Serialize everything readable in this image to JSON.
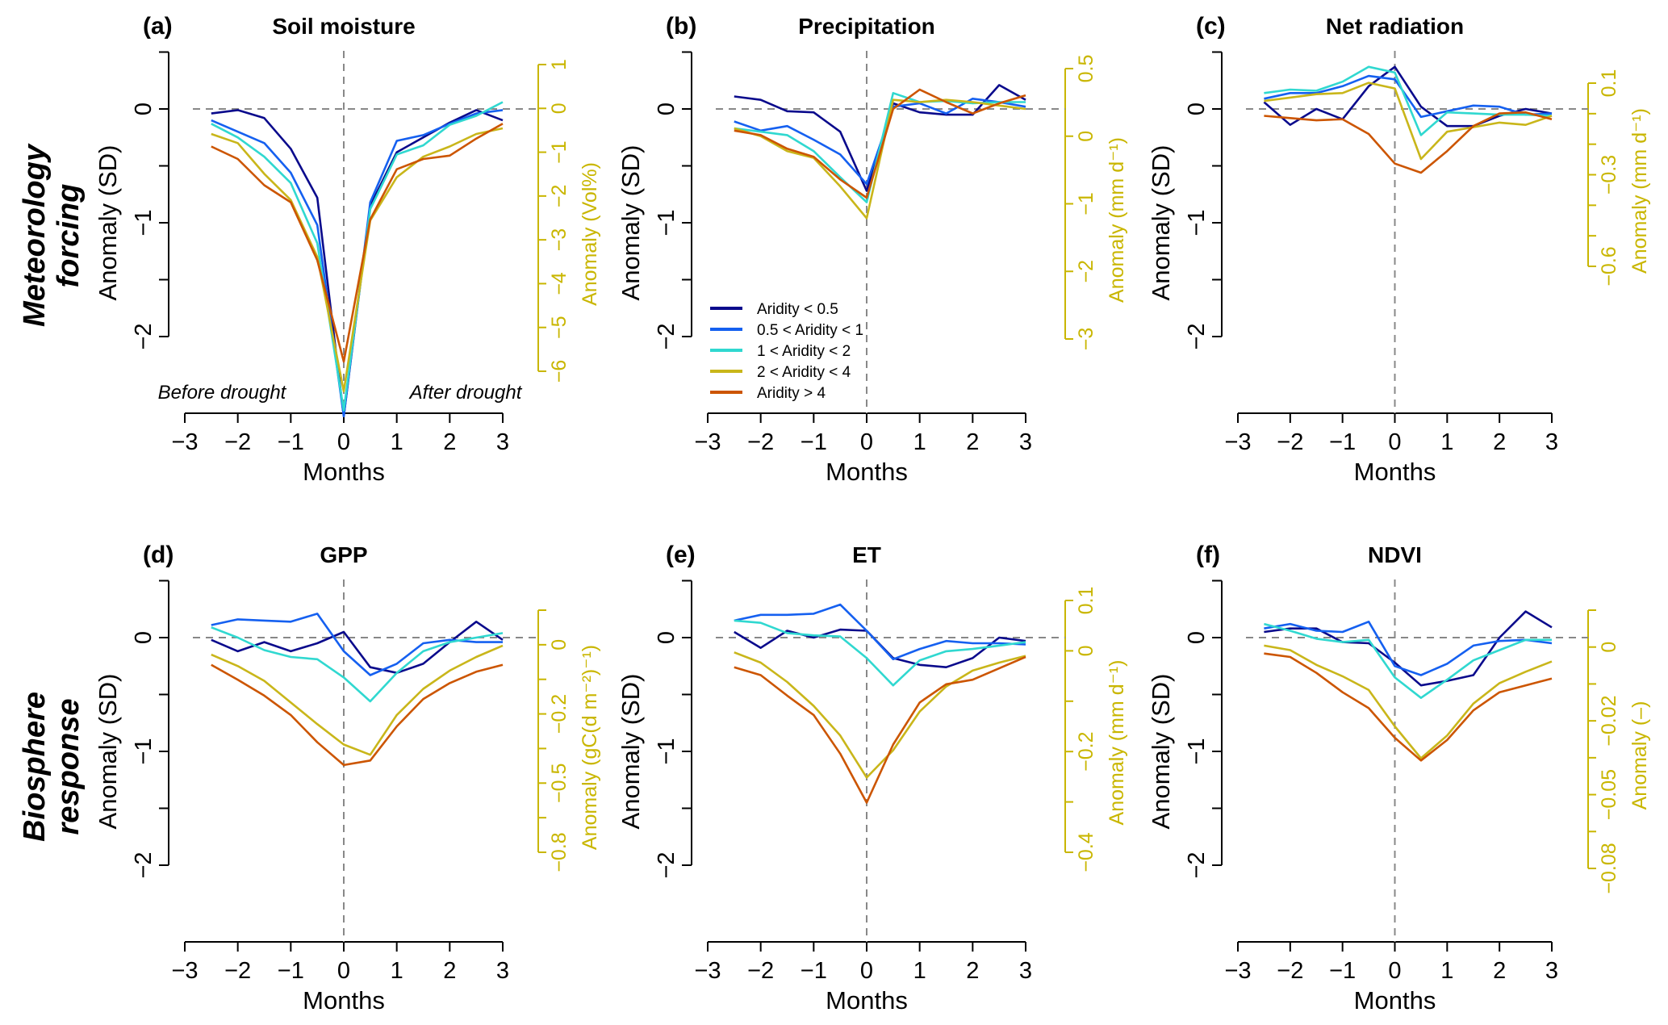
{
  "chart_data": {
    "type": "line",
    "x": [
      -2.5,
      -2,
      -1.5,
      -1,
      -0.5,
      0,
      0.5,
      1,
      1.5,
      2,
      2.5,
      3
    ],
    "xlabel": "Months",
    "xticks": [
      -3,
      -2,
      -1,
      0,
      1,
      2,
      3
    ],
    "xlim": [
      -3,
      3
    ],
    "ylabel": "Anomaly (SD)",
    "yticks": [
      0,
      -1,
      -2
    ],
    "ylim": [
      -2.7,
      0.5
    ],
    "reference_lines": {
      "horizontal": 0,
      "vertical": 0,
      "style": "dashed"
    },
    "series_names": [
      "Aridity < 0.5",
      "0.5 < Aridity < 1",
      "1 < Aridity < 2",
      "2 < Aridity < 4",
      "Aridity > 4"
    ],
    "series_colors": [
      "#0a0a8c",
      "#1560f0",
      "#30d8d0",
      "#c9b61a",
      "#cc5500"
    ],
    "legend_location": "panel (b), bottom-left",
    "row_labels": [
      {
        "line1": "Meteorology",
        "line2": "forcing"
      },
      {
        "line1": "Biosphere",
        "line2": "response"
      }
    ],
    "panels": [
      {
        "label": "(a)",
        "title": "Soil moisture",
        "right_axis": {
          "label": "Anomaly (Vol%)",
          "ticks": [
            "1",
            "0",
            "−1",
            "−2",
            "−3",
            "−4",
            "−5",
            "−6"
          ],
          "range": [
            1,
            -6
          ]
        },
        "annotations": [
          "Before  drought",
          "After  drought"
        ],
        "series": [
          {
            "name": "Aridity < 0.5",
            "values": [
              -0.04,
              -0.01,
              -0.08,
              -0.35,
              -0.78,
              -2.72,
              -0.85,
              -0.38,
              -0.25,
              -0.12,
              -0.01,
              -0.1
            ]
          },
          {
            "name": "0.5 < Aridity < 1",
            "values": [
              -0.1,
              -0.2,
              -0.3,
              -0.56,
              -1.02,
              -2.72,
              -0.82,
              -0.28,
              -0.23,
              -0.13,
              -0.04,
              -0.01
            ]
          },
          {
            "name": "1 < Aridity < 2",
            "values": [
              -0.13,
              -0.25,
              -0.42,
              -0.65,
              -1.18,
              -2.65,
              -0.88,
              -0.4,
              -0.32,
              -0.14,
              -0.06,
              0.06
            ]
          },
          {
            "name": "2 < Aridity < 4",
            "values": [
              -0.22,
              -0.3,
              -0.57,
              -0.8,
              -1.3,
              -2.48,
              -0.98,
              -0.6,
              -0.42,
              -0.33,
              -0.22,
              -0.17
            ]
          },
          {
            "name": "Aridity > 4",
            "values": [
              -0.33,
              -0.44,
              -0.67,
              -0.82,
              -1.33,
              -2.22,
              -0.97,
              -0.53,
              -0.44,
              -0.41,
              -0.26,
              -0.13
            ]
          }
        ]
      },
      {
        "label": "(b)",
        "title": "Precipitation",
        "right_axis": {
          "label": "Anomaly (mm d⁻¹)",
          "ticks": [
            "0.5",
            "0",
            "−1",
            "−2",
            "−3"
          ],
          "range": [
            0.5,
            -3
          ]
        },
        "annotations": [],
        "series": [
          {
            "name": "Aridity < 0.5",
            "values": [
              0.11,
              0.08,
              -0.02,
              -0.03,
              -0.2,
              -0.72,
              0.05,
              -0.03,
              -0.05,
              -0.05,
              0.21,
              0.08
            ]
          },
          {
            "name": "0.5 < Aridity < 1",
            "values": [
              -0.11,
              -0.19,
              -0.15,
              -0.27,
              -0.4,
              -0.66,
              0.02,
              0.05,
              -0.04,
              0.09,
              0.06,
              0.02
            ]
          },
          {
            "name": "1 < Aridity < 2",
            "values": [
              -0.17,
              -0.2,
              -0.23,
              -0.37,
              -0.6,
              -0.82,
              0.14,
              0.06,
              0.07,
              0.05,
              0.06,
              0.06
            ]
          },
          {
            "name": "2 < Aridity < 4",
            "values": [
              -0.17,
              -0.24,
              -0.37,
              -0.43,
              -0.68,
              -0.96,
              0.08,
              0.06,
              0.08,
              0.06,
              0.03,
              0.0
            ]
          },
          {
            "name": "Aridity > 4",
            "values": [
              -0.19,
              -0.23,
              -0.35,
              -0.42,
              -0.62,
              -0.78,
              0.0,
              0.17,
              0.06,
              -0.04,
              0.05,
              0.12
            ]
          }
        ]
      },
      {
        "label": "(c)",
        "title": "Net radiation",
        "right_axis": {
          "label": "Anomaly (mm d⁻¹)",
          "ticks": [
            "0.1",
            "",
            "",
            "−0.3",
            "",
            "",
            "−0.6"
          ],
          "range": [
            0.1,
            -0.6
          ]
        },
        "annotations": [],
        "series": [
          {
            "name": "Aridity < 0.5",
            "values": [
              0.06,
              -0.14,
              0.0,
              -0.09,
              0.2,
              0.37,
              0.02,
              -0.15,
              -0.15,
              -0.06,
              0.0,
              -0.04
            ]
          },
          {
            "name": "0.5 < Aridity < 1",
            "values": [
              0.09,
              0.14,
              0.14,
              0.2,
              0.29,
              0.26,
              -0.07,
              -0.02,
              0.03,
              0.02,
              -0.05,
              -0.04
            ]
          },
          {
            "name": "1 < Aridity < 2",
            "values": [
              0.14,
              0.17,
              0.16,
              0.24,
              0.37,
              0.32,
              -0.23,
              -0.03,
              -0.04,
              -0.05,
              -0.05,
              -0.06
            ]
          },
          {
            "name": "2 < Aridity < 4",
            "values": [
              0.07,
              0.1,
              0.13,
              0.14,
              0.23,
              0.18,
              -0.44,
              -0.2,
              -0.16,
              -0.12,
              -0.14,
              -0.06
            ]
          },
          {
            "name": "Aridity > 4",
            "values": [
              -0.06,
              -0.08,
              -0.1,
              -0.09,
              -0.22,
              -0.48,
              -0.56,
              -0.37,
              -0.15,
              -0.04,
              -0.03,
              -0.09
            ]
          }
        ]
      },
      {
        "label": "(d)",
        "title": "GPP",
        "right_axis": {
          "label": "Anomaly (gC(d m⁻²)⁻¹)",
          "ticks": [
            "",
            "0",
            "",
            "−0.2",
            "",
            "−0.5",
            "",
            "−0.8"
          ],
          "range": [
            0.1,
            -0.8
          ]
        },
        "annotations": [],
        "series": [
          {
            "name": "Aridity < 0.5",
            "values": [
              -0.02,
              -0.12,
              -0.04,
              -0.12,
              -0.05,
              0.05,
              -0.26,
              -0.31,
              -0.23,
              -0.04,
              0.14,
              -0.02
            ]
          },
          {
            "name": "0.5 < Aridity < 1",
            "values": [
              0.11,
              0.16,
              0.15,
              0.14,
              0.21,
              -0.12,
              -0.33,
              -0.23,
              -0.05,
              -0.02,
              -0.04,
              -0.04
            ]
          },
          {
            "name": "1 < Aridity < 2",
            "values": [
              0.09,
              0.0,
              -0.11,
              -0.17,
              -0.19,
              -0.35,
              -0.56,
              -0.31,
              -0.12,
              -0.04,
              0.0,
              0.04
            ]
          },
          {
            "name": "2 < Aridity < 4",
            "values": [
              -0.15,
              -0.25,
              -0.38,
              -0.57,
              -0.76,
              -0.94,
              -1.03,
              -0.68,
              -0.45,
              -0.29,
              -0.17,
              -0.07
            ]
          },
          {
            "name": "Aridity > 4",
            "values": [
              -0.24,
              -0.37,
              -0.51,
              -0.68,
              -0.92,
              -1.12,
              -1.08,
              -0.78,
              -0.54,
              -0.4,
              -0.3,
              -0.24
            ]
          }
        ]
      },
      {
        "label": "(e)",
        "title": "ET",
        "right_axis": {
          "label": "Anomaly (mm d⁻¹)",
          "ticks": [
            "0.1",
            "0",
            "",
            "−0.2",
            "",
            "−0.4"
          ],
          "range": [
            0.1,
            -0.4
          ]
        },
        "annotations": [],
        "series": [
          {
            "name": "Aridity < 0.5",
            "values": [
              0.05,
              -0.09,
              0.06,
              0.0,
              0.07,
              0.06,
              -0.18,
              -0.24,
              -0.26,
              -0.18,
              0.0,
              -0.03
            ]
          },
          {
            "name": "0.5 < Aridity < 1",
            "values": [
              0.15,
              0.2,
              0.2,
              0.21,
              0.29,
              0.06,
              -0.19,
              -0.1,
              -0.03,
              -0.05,
              -0.05,
              -0.06
            ]
          },
          {
            "name": "1 < Aridity < 2",
            "values": [
              0.15,
              0.13,
              0.04,
              0.02,
              0.01,
              -0.18,
              -0.42,
              -0.2,
              -0.12,
              -0.1,
              -0.07,
              -0.04
            ]
          },
          {
            "name": "2 < Aridity < 4",
            "values": [
              -0.13,
              -0.22,
              -0.39,
              -0.6,
              -0.86,
              -1.23,
              -0.99,
              -0.65,
              -0.43,
              -0.29,
              -0.22,
              -0.16
            ]
          },
          {
            "name": "Aridity > 4",
            "values": [
              -0.26,
              -0.33,
              -0.51,
              -0.68,
              -1.02,
              -1.45,
              -0.94,
              -0.57,
              -0.41,
              -0.37,
              -0.27,
              -0.17
            ]
          }
        ]
      },
      {
        "label": "(f)",
        "title": "NDVI",
        "right_axis": {
          "label": "Anomaly (–)",
          "ticks": [
            "",
            "0",
            "",
            "−0.02",
            "",
            "−0.05",
            "",
            "−0.08"
          ],
          "range": [
            0.01,
            -0.08
          ]
        },
        "annotations": [],
        "series": [
          {
            "name": "Aridity < 0.5",
            "values": [
              0.05,
              0.08,
              0.08,
              -0.04,
              -0.05,
              -0.22,
              -0.42,
              -0.38,
              -0.33,
              0.0,
              0.23,
              0.09
            ]
          },
          {
            "name": "0.5 < Aridity < 1",
            "values": [
              0.08,
              0.12,
              0.06,
              0.05,
              0.14,
              -0.25,
              -0.33,
              -0.23,
              -0.07,
              -0.03,
              -0.02,
              -0.05
            ]
          },
          {
            "name": "1 < Aridity < 2",
            "values": [
              0.12,
              0.06,
              -0.01,
              -0.04,
              -0.02,
              -0.35,
              -0.53,
              -0.37,
              -0.2,
              -0.11,
              -0.02,
              -0.02
            ]
          },
          {
            "name": "2 < Aridity < 4",
            "values": [
              -0.07,
              -0.11,
              -0.24,
              -0.34,
              -0.46,
              -0.78,
              -1.06,
              -0.86,
              -0.58,
              -0.4,
              -0.3,
              -0.21
            ]
          },
          {
            "name": "Aridity > 4",
            "values": [
              -0.14,
              -0.17,
              -0.31,
              -0.48,
              -0.62,
              -0.88,
              -1.08,
              -0.9,
              -0.64,
              -0.48,
              -0.42,
              -0.36
            ]
          }
        ]
      }
    ]
  }
}
